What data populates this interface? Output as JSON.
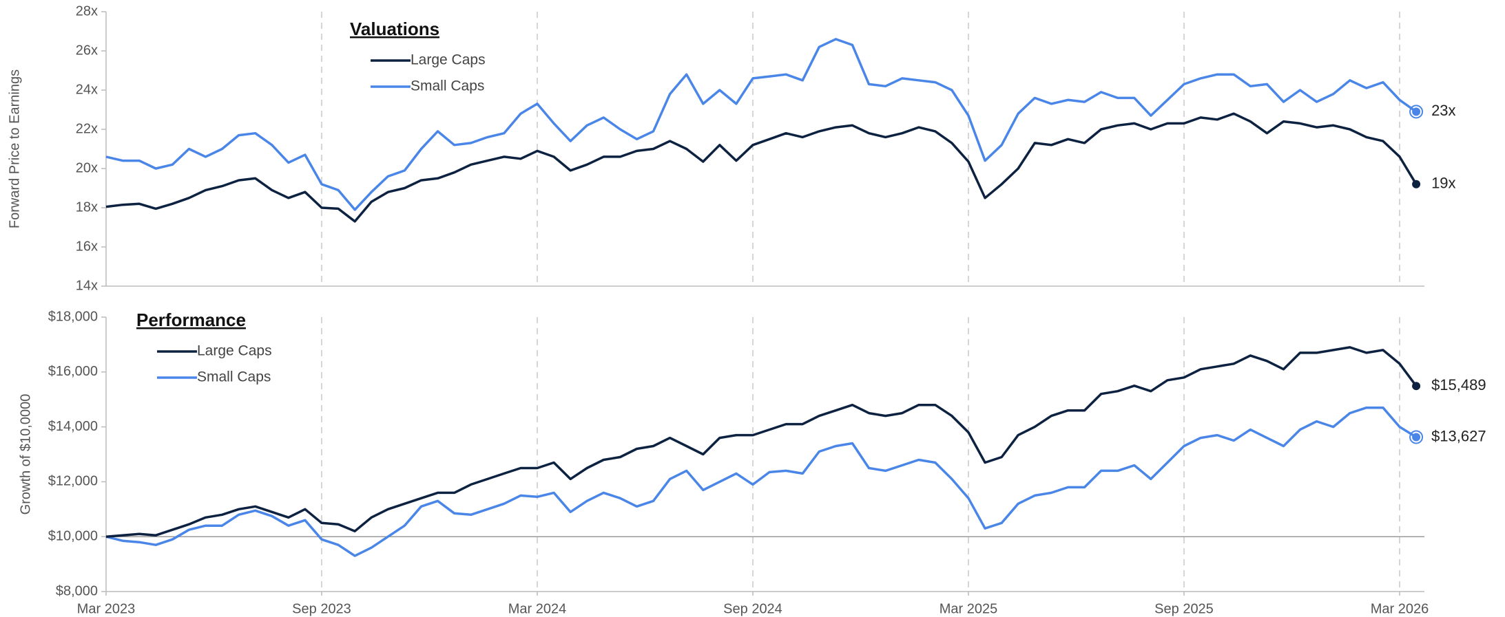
{
  "chart_data": [
    {
      "type": "line",
      "title": "Valuations",
      "y_label": "Forward Price to Earnings",
      "ylim": [
        14,
        28
      ],
      "yticks": [
        {
          "value": 14,
          "label": "14x"
        },
        {
          "value": 16,
          "label": "16x"
        },
        {
          "value": 18,
          "label": "18x"
        },
        {
          "value": 20,
          "label": "20x"
        },
        {
          "value": 22,
          "label": "22x"
        },
        {
          "value": 24,
          "label": "24x"
        },
        {
          "value": 26,
          "label": "26x"
        },
        {
          "value": 28,
          "label": "28x"
        }
      ],
      "series": [
        {
          "name": "Large Caps",
          "color": "#0d2240",
          "values": [
            18.05,
            18.15,
            18.2,
            17.95,
            18.2,
            18.5,
            18.9,
            19.1,
            19.4,
            19.5,
            18.9,
            18.5,
            18.8,
            18.0,
            17.95,
            17.3,
            18.3,
            18.8,
            19.0,
            19.4,
            19.5,
            19.8,
            20.2,
            20.4,
            20.6,
            20.5,
            20.9,
            20.6,
            19.9,
            20.2,
            20.6,
            20.6,
            20.9,
            21.0,
            21.4,
            21.0,
            20.35,
            21.2,
            20.4,
            21.2,
            21.5,
            21.8,
            21.6,
            21.9,
            22.1,
            22.2,
            21.8,
            21.6,
            21.8,
            22.1,
            21.9,
            21.3,
            20.35,
            18.5,
            19.2,
            20.0,
            21.3,
            21.2,
            21.5,
            21.3,
            22.0,
            22.2,
            22.3,
            22.0,
            22.3,
            22.3,
            22.6,
            22.5,
            22.8,
            22.4,
            21.8,
            22.4,
            22.3,
            22.1,
            22.2,
            22.0,
            21.6,
            21.4,
            20.6,
            19.2
          ],
          "value_labels": [
            null,
            null,
            null,
            null,
            null,
            null,
            null,
            null,
            null,
            null,
            null,
            null,
            null,
            null,
            null,
            null,
            null,
            null,
            null,
            null,
            null,
            null,
            null,
            null,
            null,
            null,
            null,
            null,
            null,
            null,
            null,
            null,
            null,
            null,
            null,
            null,
            null,
            null,
            null,
            null,
            null,
            null,
            null,
            null,
            null,
            null,
            null,
            null,
            null,
            null,
            null,
            null,
            null,
            null,
            null,
            null,
            null,
            null,
            null,
            null,
            null,
            null,
            null,
            null,
            null,
            null,
            null,
            null,
            null,
            null,
            null,
            null,
            null,
            null,
            null,
            null,
            null,
            null,
            null,
            "19x"
          ]
        },
        {
          "name": "Small Caps",
          "color": "#4a86e8",
          "values": [
            20.6,
            20.4,
            20.4,
            20.0,
            20.2,
            21.0,
            20.6,
            21.0,
            21.7,
            21.8,
            21.2,
            20.3,
            20.7,
            19.2,
            18.9,
            17.9,
            18.8,
            19.6,
            19.9,
            21.0,
            21.9,
            21.2,
            21.3,
            21.6,
            21.8,
            22.8,
            23.3,
            22.3,
            21.4,
            22.2,
            22.6,
            22.0,
            21.5,
            21.9,
            23.8,
            24.8,
            23.3,
            24.0,
            23.3,
            24.6,
            24.7,
            24.8,
            24.5,
            26.2,
            26.6,
            26.3,
            24.3,
            24.2,
            24.6,
            24.5,
            24.4,
            24.0,
            22.7,
            20.4,
            21.2,
            22.8,
            23.6,
            23.3,
            23.5,
            23.4,
            23.9,
            23.6,
            23.6,
            22.7,
            23.5,
            24.3,
            24.6,
            24.8,
            24.8,
            24.2,
            24.3,
            23.4,
            24.0,
            23.4,
            23.8,
            24.5,
            24.1,
            24.4,
            23.5,
            22.9
          ],
          "value_labels": [
            null,
            null,
            null,
            null,
            null,
            null,
            null,
            null,
            null,
            null,
            null,
            null,
            null,
            null,
            null,
            null,
            null,
            null,
            null,
            null,
            null,
            null,
            null,
            null,
            null,
            null,
            null,
            null,
            null,
            null,
            null,
            null,
            null,
            null,
            null,
            null,
            null,
            null,
            null,
            null,
            null,
            null,
            null,
            null,
            null,
            null,
            null,
            null,
            null,
            null,
            null,
            null,
            null,
            null,
            null,
            null,
            null,
            null,
            null,
            null,
            null,
            null,
            null,
            null,
            null,
            null,
            null,
            null,
            null,
            null,
            null,
            null,
            null,
            null,
            null,
            null,
            null,
            null,
            null,
            "23x"
          ]
        }
      ]
    },
    {
      "type": "line",
      "title": "Performance",
      "y_label": "Growth of $10,0000",
      "categories": [
        "Mar 2023",
        null,
        null,
        null,
        null,
        null,
        null,
        null,
        null,
        null,
        null,
        null,
        null,
        "Sep 2023",
        null,
        null,
        null,
        null,
        null,
        null,
        null,
        null,
        null,
        null,
        null,
        null,
        "Mar 2024",
        null,
        null,
        null,
        null,
        null,
        null,
        null,
        null,
        null,
        null,
        null,
        null,
        "Sep 2024",
        null,
        null,
        null,
        null,
        null,
        null,
        null,
        null,
        null,
        null,
        null,
        null,
        "Mar 2025",
        null,
        null,
        null,
        null,
        null,
        null,
        null,
        null,
        null,
        null,
        null,
        null,
        "Sep 2025",
        null,
        null,
        null,
        null,
        null,
        null,
        null,
        null,
        null,
        null,
        null,
        null,
        "Mar 2026",
        null
      ],
      "ylim": [
        8000,
        18000
      ],
      "baseline": 10000,
      "yticks": [
        {
          "value": 8000,
          "label": "$8,000"
        },
        {
          "value": 10000,
          "label": "$10,000"
        },
        {
          "value": 12000,
          "label": "$12,000"
        },
        {
          "value": 14000,
          "label": "$14,000"
        },
        {
          "value": 16000,
          "label": "$16,000"
        },
        {
          "value": 18000,
          "label": "$18,000"
        }
      ],
      "series": [
        {
          "name": "Large Caps",
          "color": "#0d2240",
          "values": [
            10000,
            10050,
            10100,
            10050,
            10250,
            10450,
            10700,
            10800,
            11000,
            11100,
            10900,
            10700,
            11000,
            10500,
            10450,
            10200,
            10700,
            11000,
            11200,
            11400,
            11600,
            11600,
            11900,
            12100,
            12300,
            12500,
            12500,
            12700,
            12100,
            12500,
            12800,
            12900,
            13200,
            13300,
            13600,
            13300,
            13000,
            13600,
            13700,
            13700,
            13900,
            14100,
            14100,
            14400,
            14600,
            14800,
            14500,
            14400,
            14500,
            14800,
            14800,
            14400,
            13800,
            12700,
            12900,
            13700,
            14000,
            14400,
            14600,
            14600,
            15200,
            15300,
            15500,
            15300,
            15700,
            15800,
            16100,
            16200,
            16300,
            16600,
            16400,
            16100,
            16700,
            16700,
            16800,
            16900,
            16700,
            16800,
            16300,
            15489
          ],
          "value_labels": [
            null,
            null,
            null,
            null,
            null,
            null,
            null,
            null,
            null,
            null,
            null,
            null,
            null,
            null,
            null,
            null,
            null,
            null,
            null,
            null,
            null,
            null,
            null,
            null,
            null,
            null,
            null,
            null,
            null,
            null,
            null,
            null,
            null,
            null,
            null,
            null,
            null,
            null,
            null,
            null,
            null,
            null,
            null,
            null,
            null,
            null,
            null,
            null,
            null,
            null,
            null,
            null,
            null,
            null,
            null,
            null,
            null,
            null,
            null,
            null,
            null,
            null,
            null,
            null,
            null,
            null,
            null,
            null,
            null,
            null,
            null,
            null,
            null,
            null,
            null,
            null,
            null,
            null,
            null,
            "$15,489"
          ]
        },
        {
          "name": "Small Caps",
          "color": "#4a86e8",
          "values": [
            10000,
            9850,
            9800,
            9700,
            9900,
            10250,
            10400,
            10400,
            10800,
            10950,
            10750,
            10400,
            10600,
            9900,
            9700,
            9300,
            9600,
            10000,
            10400,
            11100,
            11300,
            10850,
            10800,
            11000,
            11200,
            11500,
            11450,
            11600,
            10900,
            11300,
            11600,
            11400,
            11100,
            11300,
            12100,
            12400,
            11700,
            12000,
            12300,
            11900,
            12350,
            12400,
            12300,
            13100,
            13300,
            13400,
            12500,
            12400,
            12600,
            12800,
            12700,
            12100,
            11400,
            10300,
            10500,
            11200,
            11500,
            11600,
            11800,
            11800,
            12400,
            12400,
            12600,
            12100,
            12700,
            13300,
            13600,
            13700,
            13500,
            13900,
            13600,
            13300,
            13900,
            14200,
            14000,
            14500,
            14700,
            14700,
            14000,
            13627
          ],
          "value_labels": [
            null,
            null,
            null,
            null,
            null,
            null,
            null,
            null,
            null,
            null,
            null,
            null,
            null,
            null,
            null,
            null,
            null,
            null,
            null,
            null,
            null,
            null,
            null,
            null,
            null,
            null,
            null,
            null,
            null,
            null,
            null,
            null,
            null,
            null,
            null,
            null,
            null,
            null,
            null,
            null,
            null,
            null,
            null,
            null,
            null,
            null,
            null,
            null,
            null,
            null,
            null,
            null,
            null,
            null,
            null,
            null,
            null,
            null,
            null,
            null,
            null,
            null,
            null,
            null,
            null,
            null,
            null,
            null,
            null,
            null,
            null,
            null,
            null,
            null,
            null,
            null,
            null,
            null,
            null,
            "$13,627"
          ]
        }
      ]
    }
  ]
}
